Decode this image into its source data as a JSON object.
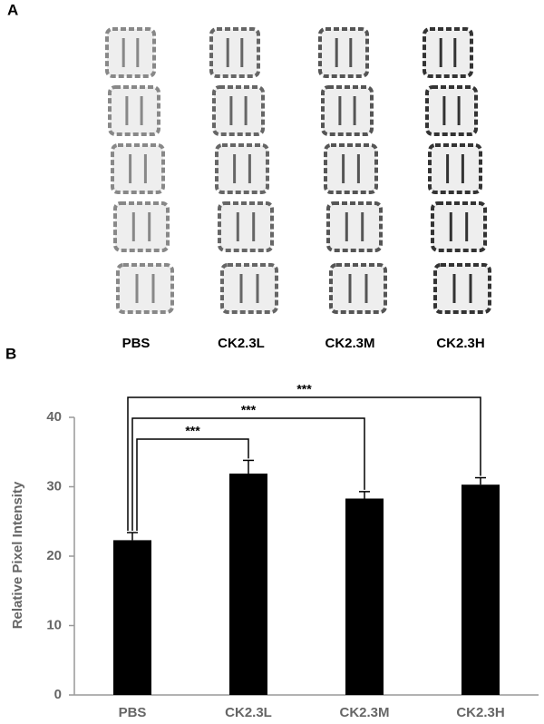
{
  "panel_a": {
    "label": "A",
    "images": [
      "PBS",
      "CK2.3L",
      "CK2.3M",
      "CK2.3H"
    ]
  },
  "panel_b": {
    "label": "B"
  },
  "chart_data": {
    "type": "bar",
    "ylabel": "Relative Pixel Intensity",
    "categories": [
      "PBS",
      "CK2.3L",
      "CK2.3M",
      "CK2.3H"
    ],
    "values": [
      22.3,
      31.9,
      28.3,
      30.3
    ],
    "errors": [
      1.1,
      1.9,
      1.0,
      1.0
    ],
    "color": "#000000",
    "ylim": [
      0,
      40
    ],
    "yticks": [
      0,
      10,
      20,
      30,
      40
    ],
    "annotations": [
      {
        "text": "***",
        "from": "PBS",
        "to": "CK2.3L"
      },
      {
        "text": "***",
        "from": "PBS",
        "to": "CK2.3M"
      },
      {
        "text": "***",
        "from": "PBS",
        "to": "CK2.3H"
      }
    ]
  }
}
